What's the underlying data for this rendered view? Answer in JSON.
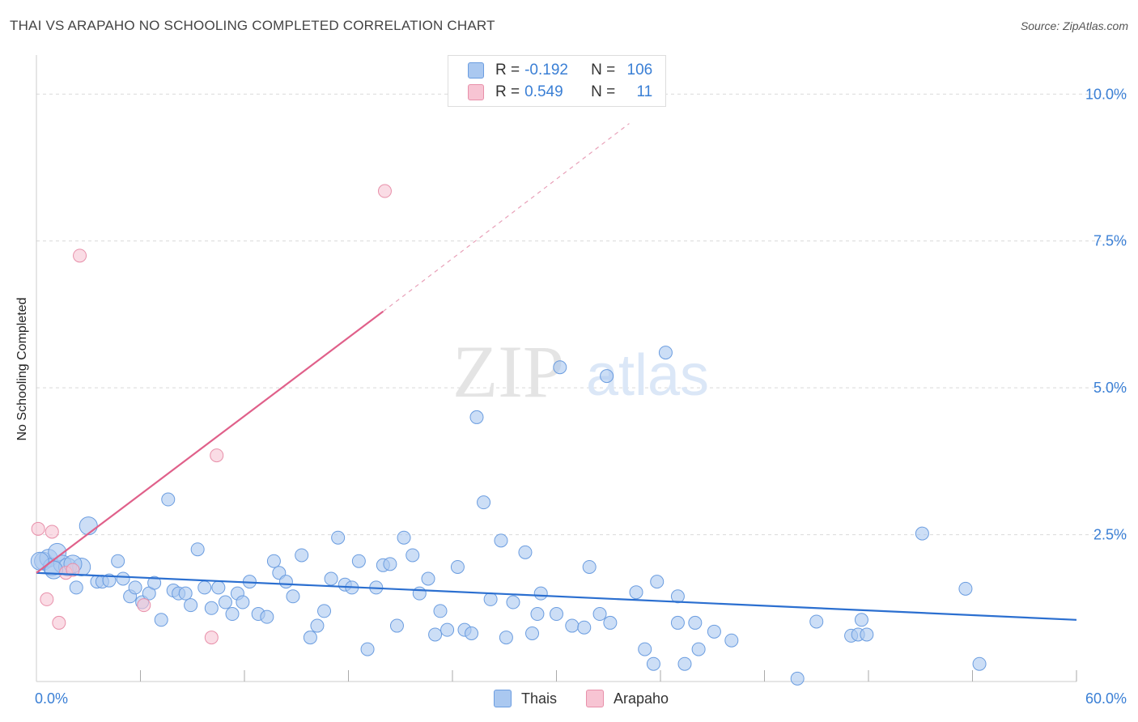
{
  "title": "THAI VS ARAPAHO NO SCHOOLING COMPLETED CORRELATION CHART",
  "source": "Source: ZipAtlas.com",
  "watermark": {
    "zip": "ZIP",
    "atlas": "atlas"
  },
  "legend": {
    "rows": [
      {
        "r_label": "R =",
        "r_value": "-0.192",
        "n_label": "N =",
        "n_value": "106",
        "color": "#aac8f0",
        "border": "#6b9de0"
      },
      {
        "r_label": "R =",
        "r_value": "0.549",
        "n_label": "N =",
        "n_value": "11",
        "color": "#f7c4d3",
        "border": "#e890aa"
      }
    ]
  },
  "bottom_legend": [
    {
      "label": "Thais",
      "color": "#aac8f0",
      "border": "#6b9de0"
    },
    {
      "label": "Arapaho",
      "color": "#f7c4d3",
      "border": "#e890aa"
    }
  ],
  "chart_data": {
    "type": "scatter",
    "title": "THAI VS ARAPAHO NO SCHOOLING COMPLETED CORRELATION CHART",
    "xlabel": "",
    "ylabel": "No Schooling Completed",
    "xlim": [
      0,
      60
    ],
    "ylim": [
      0,
      10.5
    ],
    "x_ticks": [
      {
        "value": 0,
        "label": "0.0%"
      },
      {
        "value": 60,
        "label": "60.0%"
      }
    ],
    "y_ticks": [
      {
        "value": 2.5,
        "label": "2.5%"
      },
      {
        "value": 5.0,
        "label": "5.0%"
      },
      {
        "value": 7.5,
        "label": "7.5%"
      },
      {
        "value": 10.0,
        "label": "10.0%"
      }
    ],
    "grid": true,
    "series": [
      {
        "name": "Thais",
        "color": "#aac8f0",
        "stroke": "#6b9de0",
        "trend": {
          "x": [
            0,
            60
          ],
          "y": [
            1.85,
            1.05
          ],
          "color": "#2b6fd0"
        },
        "points": [
          [
            0.4,
            2.05
          ],
          [
            0.7,
            2.1
          ],
          [
            0.9,
            1.95
          ],
          [
            1.2,
            2.2
          ],
          [
            1.5,
            2.0
          ],
          [
            1.8,
            1.95
          ],
          [
            2.3,
            1.6
          ],
          [
            2.6,
            1.95
          ],
          [
            3.0,
            2.65
          ],
          [
            3.5,
            1.7
          ],
          [
            3.8,
            1.7
          ],
          [
            4.2,
            1.72
          ],
          [
            4.7,
            2.05
          ],
          [
            5.0,
            1.75
          ],
          [
            5.4,
            1.45
          ],
          [
            5.7,
            1.6
          ],
          [
            6.1,
            1.35
          ],
          [
            6.5,
            1.5
          ],
          [
            6.8,
            1.68
          ],
          [
            7.2,
            1.05
          ],
          [
            7.6,
            3.1
          ],
          [
            7.9,
            1.55
          ],
          [
            8.2,
            1.5
          ],
          [
            8.6,
            1.5
          ],
          [
            8.9,
            1.3
          ],
          [
            9.3,
            2.25
          ],
          [
            9.7,
            1.6
          ],
          [
            10.1,
            1.25
          ],
          [
            10.5,
            1.6
          ],
          [
            10.9,
            1.35
          ],
          [
            11.3,
            1.15
          ],
          [
            11.6,
            1.5
          ],
          [
            11.9,
            1.35
          ],
          [
            12.3,
            1.7
          ],
          [
            12.8,
            1.15
          ],
          [
            13.3,
            1.1
          ],
          [
            13.7,
            2.05
          ],
          [
            14.0,
            1.85
          ],
          [
            14.4,
            1.7
          ],
          [
            14.8,
            1.45
          ],
          [
            15.3,
            2.15
          ],
          [
            15.8,
            0.75
          ],
          [
            16.2,
            0.95
          ],
          [
            16.6,
            1.2
          ],
          [
            17.0,
            1.75
          ],
          [
            17.4,
            2.45
          ],
          [
            17.8,
            1.65
          ],
          [
            18.2,
            1.6
          ],
          [
            18.6,
            2.05
          ],
          [
            19.1,
            0.55
          ],
          [
            19.6,
            1.6
          ],
          [
            20.0,
            1.98
          ],
          [
            20.4,
            2.0
          ],
          [
            20.8,
            0.95
          ],
          [
            21.2,
            2.45
          ],
          [
            21.7,
            2.15
          ],
          [
            22.1,
            1.5
          ],
          [
            22.6,
            1.75
          ],
          [
            23.0,
            0.8
          ],
          [
            23.3,
            1.2
          ],
          [
            23.7,
            0.88
          ],
          [
            24.3,
            1.95
          ],
          [
            24.7,
            0.88
          ],
          [
            25.1,
            0.82
          ],
          [
            25.4,
            4.5
          ],
          [
            25.8,
            3.05
          ],
          [
            26.2,
            1.4
          ],
          [
            26.8,
            2.4
          ],
          [
            27.1,
            0.75
          ],
          [
            27.5,
            1.35
          ],
          [
            28.2,
            2.2
          ],
          [
            28.6,
            0.82
          ],
          [
            28.9,
            1.15
          ],
          [
            29.1,
            1.5
          ],
          [
            30.2,
            5.35
          ],
          [
            30.0,
            1.15
          ],
          [
            30.9,
            0.95
          ],
          [
            31.9,
            1.95
          ],
          [
            31.6,
            0.92
          ],
          [
            32.5,
            1.15
          ],
          [
            32.9,
            5.2
          ],
          [
            33.1,
            1.0
          ],
          [
            34.6,
            1.52
          ],
          [
            35.1,
            0.55
          ],
          [
            35.8,
            1.7
          ],
          [
            35.6,
            0.3
          ],
          [
            36.3,
            5.6
          ],
          [
            37.0,
            1.45
          ],
          [
            37.4,
            0.3
          ],
          [
            37.0,
            1.0
          ],
          [
            38.0,
            1.0
          ],
          [
            38.2,
            0.55
          ],
          [
            39.1,
            0.85
          ],
          [
            40.1,
            0.7
          ],
          [
            43.9,
            0.05
          ],
          [
            45.0,
            1.02
          ],
          [
            47.0,
            0.78
          ],
          [
            47.4,
            0.8
          ],
          [
            47.6,
            1.05
          ],
          [
            47.9,
            0.8
          ],
          [
            51.1,
            2.52
          ],
          [
            53.6,
            1.58
          ],
          [
            54.4,
            0.3
          ],
          [
            0.2,
            2.05
          ],
          [
            1.0,
            1.9
          ],
          [
            2.1,
            2.0
          ]
        ]
      },
      {
        "name": "Arapaho",
        "color": "#f7c4d3",
        "stroke": "#e890aa",
        "trend": {
          "x": [
            0,
            20
          ],
          "y": [
            1.85,
            6.3
          ],
          "dash_to": [
            34.2,
            9.5
          ],
          "color": "#e0608a"
        },
        "points": [
          [
            0.1,
            2.6
          ],
          [
            0.6,
            1.4
          ],
          [
            0.9,
            2.55
          ],
          [
            1.3,
            1.0
          ],
          [
            1.7,
            1.85
          ],
          [
            2.5,
            7.25
          ],
          [
            6.2,
            1.3
          ],
          [
            10.1,
            0.75
          ],
          [
            10.4,
            3.85
          ],
          [
            20.1,
            8.35
          ],
          [
            2.1,
            1.9
          ]
        ]
      }
    ]
  }
}
